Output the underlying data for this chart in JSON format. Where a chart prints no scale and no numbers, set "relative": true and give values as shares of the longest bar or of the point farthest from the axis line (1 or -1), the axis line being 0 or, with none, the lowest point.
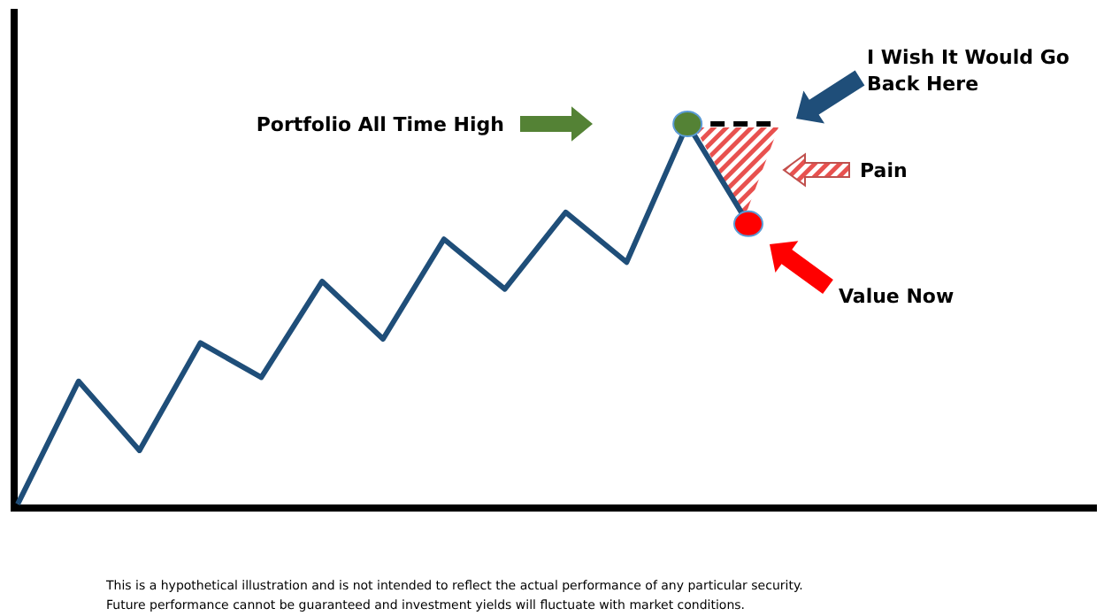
{
  "chart_data": {
    "type": "line",
    "relative": true,
    "categories": [
      null,
      null,
      null,
      null,
      null,
      null,
      null,
      null,
      null,
      null,
      null,
      null,
      null
    ],
    "series": [
      {
        "color": "#1f4e79",
        "values": [
          0.01,
          0.33,
          0.15,
          0.43,
          0.34,
          0.59,
          0.44,
          0.7,
          0.57,
          0.77,
          0.64,
          1,
          0.74
        ]
      }
    ],
    "annotations": [
      "Portfolio All Time High",
      "I Wish It Would Go Back Here",
      "Pain",
      "Value Now",
      "This is a hypothetical illustration and is not intended to reflect the actual performance of any particular security.",
      "Future performance cannot be guaranteed and investment yields will fluctuate with market conditions."
    ]
  }
}
